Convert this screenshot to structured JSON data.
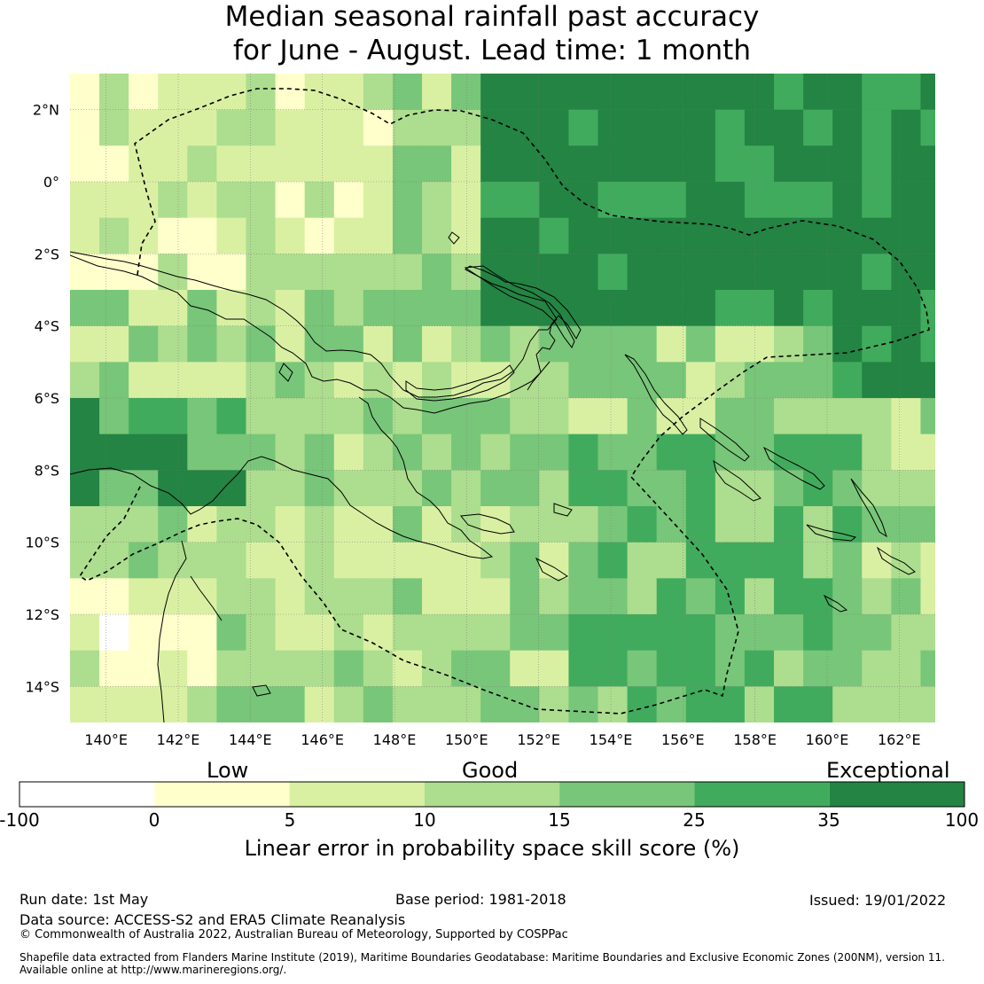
{
  "title": {
    "line1": "Median seasonal rainfall past accuracy",
    "line2": "for June - August. Lead time: 1 month"
  },
  "map": {
    "lat_labels": [
      "2°N",
      "0°",
      "2°S",
      "4°S",
      "6°S",
      "8°S",
      "10°S",
      "12°S",
      "14°S"
    ],
    "lon_labels": [
      "140°E",
      "142°E",
      "144°E",
      "146°E",
      "148°E",
      "150°E",
      "152°E",
      "154°E",
      "156°E",
      "158°E",
      "160°E",
      "162°E"
    ],
    "grid": "on"
  },
  "legend": {
    "categories": [
      "Low",
      "Good",
      "Exceptional"
    ],
    "bins": [
      "-100",
      "0",
      "5",
      "10",
      "15",
      "25",
      "35",
      "100"
    ],
    "colors": [
      "#ffffff",
      "#ffffcc",
      "#d9f0a3",
      "#addd8e",
      "#78c679",
      "#41ab5d",
      "#238443"
    ],
    "axis_label": "Linear error in probability space skill score (%)"
  },
  "footer": {
    "run_date": "Run date: 1st May",
    "base_period": "Base period: 1981-2018",
    "issued": "Issued: 19/01/2022",
    "data_source": "Data source: ACCESS-S2 and ERA5 Climate Reanalysis",
    "copyright": "© Commonwealth of Australia 2022, Australian Bureau of Meteorology, Supported by COSPPac",
    "shapefile_line1": "Shapefile data extracted from Flanders Marine Institute (2019), Maritime Boundaries Geodatabase: Maritime Boundaries and Exclusive Economic Zones (200NM), version 11.",
    "shapefile_line2": "Available online at http://www.marineregions.org/."
  }
}
